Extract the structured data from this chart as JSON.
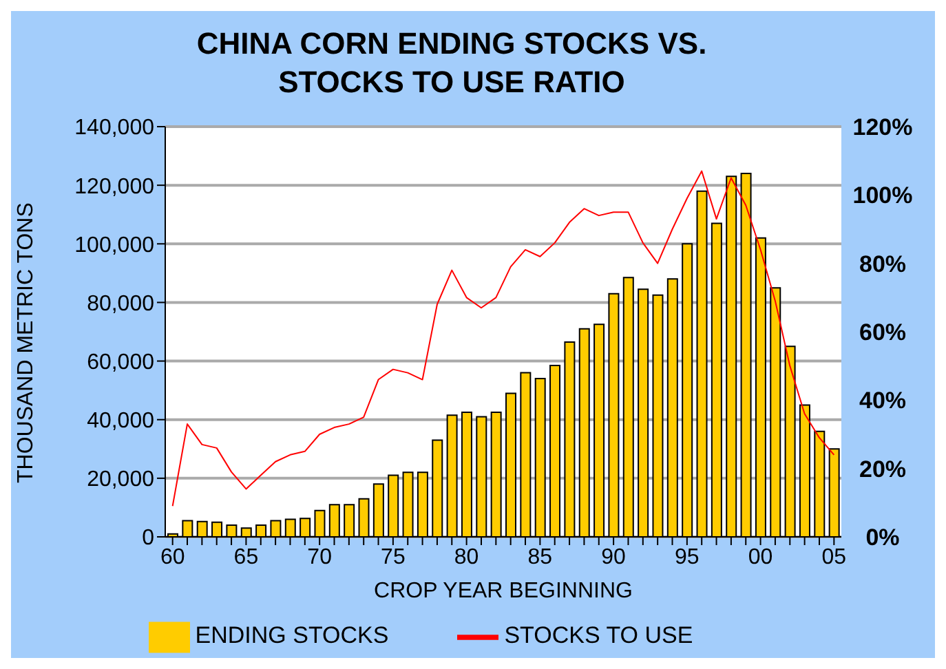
{
  "chart_data": {
    "type": "bar",
    "title": "CHINA CORN ENDING STOCKS VS.\nSTOCKS TO USE RATIO",
    "xlabel": "CROP YEAR BEGINNING",
    "ylabel": "THOUSAND METRIC TONS",
    "categories": [
      "60",
      null,
      null,
      null,
      null,
      "65",
      null,
      null,
      null,
      null,
      "70",
      null,
      null,
      null,
      null,
      "75",
      null,
      null,
      null,
      null,
      "80",
      null,
      null,
      null,
      null,
      "85",
      null,
      null,
      null,
      null,
      "90",
      null,
      null,
      null,
      null,
      "95",
      null,
      null,
      null,
      null,
      "00",
      null,
      null,
      null,
      null,
      "05"
    ],
    "series": [
      {
        "name": "ENDING STOCKS",
        "color": "#ffcc00",
        "values": [
          1000,
          5500,
          5200,
          5000,
          4000,
          3000,
          4000,
          5500,
          6000,
          6300,
          9000,
          11000,
          11000,
          13000,
          18000,
          21000,
          22000,
          22000,
          33000,
          41500,
          42500,
          41000,
          42500,
          49000,
          56000,
          54000,
          58500,
          66500,
          71000,
          72500,
          83000,
          88500,
          84500,
          82500,
          88000,
          100000,
          118000,
          107000,
          123000,
          124000,
          102000,
          85000,
          65000,
          45000,
          36000,
          30000
        ]
      },
      {
        "name": "STOCKS TO USE",
        "type": "line",
        "axis": "y2",
        "color": "#ff0000",
        "values": [
          9,
          33,
          27,
          26,
          19,
          14,
          18,
          22,
          24,
          25,
          30,
          32,
          33,
          35,
          46,
          49,
          48,
          46,
          68,
          78,
          70,
          67,
          70,
          79,
          84,
          82,
          86,
          92,
          96,
          94,
          95,
          95,
          86,
          80,
          90,
          99,
          107,
          93,
          105,
          97,
          84,
          69,
          50,
          36,
          29,
          24
        ]
      }
    ],
    "ylim": [
      0,
      140000
    ],
    "yticks": [
      {
        "value": 0,
        "label": "0"
      },
      {
        "value": 20000,
        "label": "20,000"
      },
      {
        "value": 40000,
        "label": "40,000"
      },
      {
        "value": 60000,
        "label": "60,000"
      },
      {
        "value": 80000,
        "label": "80,000"
      },
      {
        "value": 100000,
        "label": "100,000"
      },
      {
        "value": 120000,
        "label": "120,000"
      },
      {
        "value": 140000,
        "label": "140,000"
      }
    ],
    "y2lim": [
      0,
      120
    ],
    "y2ticks": [
      {
        "value": 0,
        "label": "0%"
      },
      {
        "value": 20,
        "label": "20%"
      },
      {
        "value": 40,
        "label": "40%"
      },
      {
        "value": 60,
        "label": "60%"
      },
      {
        "value": 80,
        "label": "80%"
      },
      {
        "value": 100,
        "label": "100%"
      },
      {
        "value": 120,
        "label": "120%"
      }
    ],
    "grid": "y",
    "legend": "bottom",
    "marker": "none",
    "line_style": "solid"
  }
}
